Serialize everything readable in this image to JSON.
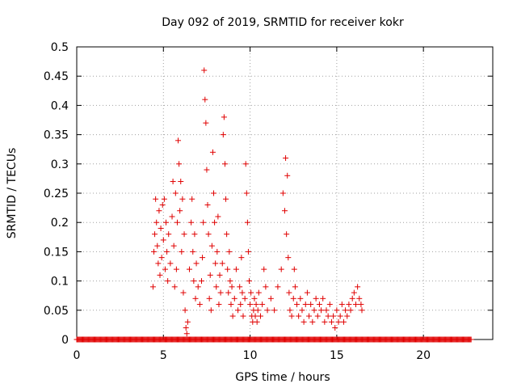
{
  "chart_data": {
    "type": "scatter",
    "title": "Day 092 of 2019, SRMTID for receiver kokr",
    "xlabel": "GPS time / hours",
    "ylabel": "SRMTID / TECUs",
    "xlim": [
      0,
      24
    ],
    "ylim": [
      0,
      0.5
    ],
    "x_ticks": [
      0,
      5,
      10,
      15,
      20
    ],
    "x_tick_labels": [
      "0",
      "5",
      "10",
      "15",
      "20"
    ],
    "y_ticks": [
      0,
      0.05,
      0.1,
      0.15,
      0.2,
      0.25,
      0.3,
      0.35,
      0.4,
      0.45,
      0.5
    ],
    "y_tick_labels": [
      "0",
      "0.05",
      "0.1",
      "0.15",
      "0.2",
      "0.25",
      "0.3",
      "0.35",
      "0.4",
      "0.45",
      "0.5"
    ],
    "grid": true,
    "marker": "+",
    "color": "#e00000",
    "series": [
      {
        "name": "SRMTID",
        "points": [
          [
            4.4,
            0.09
          ],
          [
            4.45,
            0.15
          ],
          [
            4.5,
            0.18
          ],
          [
            4.55,
            0.24
          ],
          [
            4.6,
            0.2
          ],
          [
            4.65,
            0.16
          ],
          [
            4.7,
            0.13
          ],
          [
            4.75,
            0.22
          ],
          [
            4.8,
            0.11
          ],
          [
            4.85,
            0.19
          ],
          [
            4.9,
            0.14
          ],
          [
            4.95,
            0.23
          ],
          [
            5.0,
            0.17
          ],
          [
            5.05,
            0.24
          ],
          [
            5.1,
            0.12
          ],
          [
            5.15,
            0.2
          ],
          [
            5.2,
            0.15
          ],
          [
            5.25,
            0.1
          ],
          [
            5.3,
            0.18
          ],
          [
            5.4,
            0.13
          ],
          [
            5.5,
            0.21
          ],
          [
            5.55,
            0.27
          ],
          [
            5.6,
            0.16
          ],
          [
            5.65,
            0.09
          ],
          [
            5.7,
            0.25
          ],
          [
            5.75,
            0.12
          ],
          [
            5.8,
            0.2
          ],
          [
            5.85,
            0.34
          ],
          [
            5.9,
            0.3
          ],
          [
            5.95,
            0.22
          ],
          [
            6.0,
            0.27
          ],
          [
            6.05,
            0.15
          ],
          [
            6.1,
            0.24
          ],
          [
            6.15,
            0.08
          ],
          [
            6.2,
            0.18
          ],
          [
            6.25,
            0.05
          ],
          [
            6.3,
            0.02
          ],
          [
            6.35,
            0.01
          ],
          [
            6.4,
            0.03
          ],
          [
            6.5,
            0.12
          ],
          [
            6.6,
            0.2
          ],
          [
            6.65,
            0.24
          ],
          [
            6.7,
            0.15
          ],
          [
            6.75,
            0.1
          ],
          [
            6.8,
            0.18
          ],
          [
            6.85,
            0.07
          ],
          [
            6.9,
            0.13
          ],
          [
            7.0,
            0.09
          ],
          [
            7.1,
            0.06
          ],
          [
            7.2,
            0.1
          ],
          [
            7.25,
            0.14
          ],
          [
            7.3,
            0.2
          ],
          [
            7.35,
            0.46
          ],
          [
            7.4,
            0.41
          ],
          [
            7.45,
            0.37
          ],
          [
            7.5,
            0.29
          ],
          [
            7.55,
            0.23
          ],
          [
            7.6,
            0.18
          ],
          [
            7.65,
            0.07
          ],
          [
            7.7,
            0.11
          ],
          [
            7.75,
            0.05
          ],
          [
            7.8,
            0.16
          ],
          [
            7.85,
            0.32
          ],
          [
            7.9,
            0.25
          ],
          [
            7.95,
            0.2
          ],
          [
            8.0,
            0.13
          ],
          [
            8.05,
            0.09
          ],
          [
            8.1,
            0.15
          ],
          [
            8.15,
            0.21
          ],
          [
            8.2,
            0.06
          ],
          [
            8.25,
            0.11
          ],
          [
            8.3,
            0.08
          ],
          [
            8.4,
            0.13
          ],
          [
            8.45,
            0.35
          ],
          [
            8.5,
            0.38
          ],
          [
            8.55,
            0.3
          ],
          [
            8.6,
            0.24
          ],
          [
            8.65,
            0.18
          ],
          [
            8.7,
            0.12
          ],
          [
            8.75,
            0.08
          ],
          [
            8.8,
            0.15
          ],
          [
            8.85,
            0.1
          ],
          [
            8.9,
            0.06
          ],
          [
            8.95,
            0.09
          ],
          [
            9.0,
            0.04
          ],
          [
            9.1,
            0.07
          ],
          [
            9.2,
            0.12
          ],
          [
            9.3,
            0.05
          ],
          [
            9.4,
            0.09
          ],
          [
            9.45,
            0.06
          ],
          [
            9.5,
            0.14
          ],
          [
            9.55,
            0.08
          ],
          [
            9.6,
            0.04
          ],
          [
            9.7,
            0.07
          ],
          [
            9.75,
            0.3
          ],
          [
            9.8,
            0.25
          ],
          [
            9.85,
            0.2
          ],
          [
            9.9,
            0.15
          ],
          [
            9.95,
            0.1
          ],
          [
            10.0,
            0.06
          ],
          [
            10.05,
            0.08
          ],
          [
            10.1,
            0.04
          ],
          [
            10.15,
            0.03
          ],
          [
            10.2,
            0.05
          ],
          [
            10.25,
            0.07
          ],
          [
            10.3,
            0.04
          ],
          [
            10.35,
            0.06
          ],
          [
            10.4,
            0.03
          ],
          [
            10.45,
            0.05
          ],
          [
            10.5,
            0.08
          ],
          [
            10.6,
            0.04
          ],
          [
            10.7,
            0.06
          ],
          [
            10.8,
            0.12
          ],
          [
            10.9,
            0.09
          ],
          [
            11.0,
            0.05
          ],
          [
            11.2,
            0.07
          ],
          [
            11.4,
            0.05
          ],
          [
            11.6,
            0.09
          ],
          [
            11.8,
            0.12
          ],
          [
            11.9,
            0.25
          ],
          [
            12.0,
            0.22
          ],
          [
            12.05,
            0.31
          ],
          [
            12.1,
            0.18
          ],
          [
            12.15,
            0.28
          ],
          [
            12.2,
            0.14
          ],
          [
            12.25,
            0.08
          ],
          [
            12.3,
            0.05
          ],
          [
            12.4,
            0.04
          ],
          [
            12.5,
            0.07
          ],
          [
            12.55,
            0.12
          ],
          [
            12.6,
            0.09
          ],
          [
            12.7,
            0.06
          ],
          [
            12.8,
            0.04
          ],
          [
            12.9,
            0.07
          ],
          [
            13.0,
            0.05
          ],
          [
            13.1,
            0.03
          ],
          [
            13.2,
            0.06
          ],
          [
            13.3,
            0.08
          ],
          [
            13.4,
            0.04
          ],
          [
            13.5,
            0.06
          ],
          [
            13.6,
            0.03
          ],
          [
            13.7,
            0.05
          ],
          [
            13.8,
            0.07
          ],
          [
            13.9,
            0.04
          ],
          [
            14.0,
            0.06
          ],
          [
            14.1,
            0.05
          ],
          [
            14.2,
            0.07
          ],
          [
            14.3,
            0.03
          ],
          [
            14.4,
            0.05
          ],
          [
            14.5,
            0.04
          ],
          [
            14.6,
            0.06
          ],
          [
            14.7,
            0.03
          ],
          [
            14.8,
            0.04
          ],
          [
            14.9,
            0.02
          ],
          [
            15.0,
            0.05
          ],
          [
            15.1,
            0.03
          ],
          [
            15.2,
            0.04
          ],
          [
            15.3,
            0.06
          ],
          [
            15.4,
            0.03
          ],
          [
            15.5,
            0.05
          ],
          [
            15.6,
            0.04
          ],
          [
            15.7,
            0.06
          ],
          [
            15.8,
            0.05
          ],
          [
            15.9,
            0.07
          ],
          [
            16.0,
            0.08
          ],
          [
            16.1,
            0.06
          ],
          [
            16.2,
            0.09
          ],
          [
            16.3,
            0.07
          ],
          [
            16.4,
            0.06
          ],
          [
            16.45,
            0.05
          ]
        ]
      }
    ],
    "baseline_zero_x_range": [
      0,
      22.8
    ]
  }
}
